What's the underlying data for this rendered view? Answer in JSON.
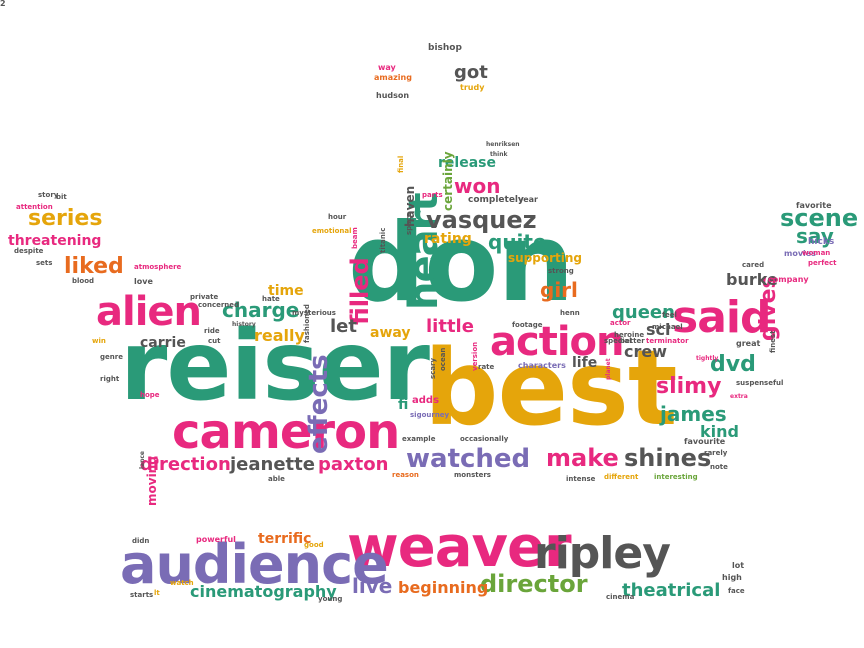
{
  "palette": {
    "pink": "#e8297f",
    "teal": "#2a9a78",
    "gold": "#e5a50b",
    "purple": "#7a6cb5",
    "gray": "#555555",
    "orange": "#e86b1f",
    "green": "#6aa53a"
  },
  "words": [
    {
      "text": "reiser",
      "color": "teal"
    },
    {
      "text": "best",
      "color": "gold"
    },
    {
      "text": "don",
      "color": "teal"
    },
    {
      "text": "weaver",
      "color": "pink"
    },
    {
      "text": "cameron",
      "color": "pink"
    },
    {
      "text": "audience",
      "color": "purple"
    },
    {
      "text": "ripley",
      "color": "gray"
    },
    {
      "text": "said",
      "color": "pink"
    },
    {
      "text": "action",
      "color": "pink"
    },
    {
      "text": "alien",
      "color": "pink"
    },
    {
      "text": "heart",
      "color": "teal"
    },
    {
      "text": "effects",
      "color": "purple"
    },
    {
      "text": "vasquez",
      "color": "gray"
    },
    {
      "text": "watched",
      "color": "purple"
    },
    {
      "text": "make",
      "color": "pink"
    },
    {
      "text": "shines",
      "color": "gray"
    },
    {
      "text": "director",
      "color": "green"
    },
    {
      "text": "scene",
      "color": "teal"
    },
    {
      "text": "gives",
      "color": "pink"
    },
    {
      "text": "filled",
      "color": "pink"
    },
    {
      "text": "liked",
      "color": "orange"
    },
    {
      "text": "series",
      "color": "gold"
    },
    {
      "text": "threatening",
      "color": "pink"
    },
    {
      "text": "won",
      "color": "pink"
    },
    {
      "text": "quite",
      "color": "teal"
    },
    {
      "text": "girl",
      "color": "orange"
    },
    {
      "text": "charge",
      "color": "teal"
    },
    {
      "text": "let",
      "color": "gray"
    },
    {
      "text": "away",
      "color": "gold"
    },
    {
      "text": "queen",
      "color": "teal"
    },
    {
      "text": "little",
      "color": "pink"
    },
    {
      "text": "dvd",
      "color": "teal"
    },
    {
      "text": "crew",
      "color": "gray"
    },
    {
      "text": "slimy",
      "color": "pink"
    },
    {
      "text": "james",
      "color": "teal"
    },
    {
      "text": "burke",
      "color": "gray"
    },
    {
      "text": "say",
      "color": "teal"
    },
    {
      "text": "kind",
      "color": "teal"
    },
    {
      "text": "direction",
      "color": "pink"
    },
    {
      "text": "jeanette",
      "color": "gray"
    },
    {
      "text": "paxton",
      "color": "pink"
    },
    {
      "text": "live",
      "color": "purple"
    },
    {
      "text": "beginning",
      "color": "orange"
    },
    {
      "text": "theatrical",
      "color": "teal"
    },
    {
      "text": "cinematography",
      "color": "teal"
    },
    {
      "text": "terrific",
      "color": "orange"
    },
    {
      "text": "carrie",
      "color": "gray"
    },
    {
      "text": "really",
      "color": "gold"
    },
    {
      "text": "time",
      "color": "gold"
    },
    {
      "text": "release",
      "color": "teal"
    },
    {
      "text": "got",
      "color": "gray"
    },
    {
      "text": "rating",
      "color": "gold"
    },
    {
      "text": "sci",
      "color": "gray"
    },
    {
      "text": "life",
      "color": "gray"
    },
    {
      "text": "certainly",
      "color": "green"
    },
    {
      "text": "haven",
      "color": "gray"
    },
    {
      "text": "supporting",
      "color": "gold"
    },
    {
      "text": "moving",
      "color": "pink"
    },
    {
      "text": "fi",
      "color": "teal"
    },
    {
      "text": "adds",
      "color": "pink"
    },
    {
      "text": "bishop",
      "color": "gray"
    },
    {
      "text": "way",
      "color": "pink"
    },
    {
      "text": "amazing",
      "color": "orange"
    },
    {
      "text": "trudy",
      "color": "gold"
    },
    {
      "text": "hudson",
      "color": "gray"
    },
    {
      "text": "parts",
      "color": "pink"
    },
    {
      "text": "completely",
      "color": "gray"
    },
    {
      "text": "year",
      "color": "gray"
    },
    {
      "text": "strong",
      "color": "gray"
    },
    {
      "text": "favorite",
      "color": "gray"
    },
    {
      "text": "hicks",
      "color": "purple"
    },
    {
      "text": "movies",
      "color": "purple"
    },
    {
      "text": "woman",
      "color": "pink"
    },
    {
      "text": "perfect",
      "color": "pink"
    },
    {
      "text": "company",
      "color": "pink"
    },
    {
      "text": "cared",
      "color": "gray"
    },
    {
      "text": "feel",
      "color": "gray"
    },
    {
      "text": "michael",
      "color": "gray"
    },
    {
      "text": "actor",
      "color": "pink"
    },
    {
      "text": "great",
      "color": "gray"
    },
    {
      "text": "terminator",
      "color": "pink"
    },
    {
      "text": "better",
      "color": "gray"
    },
    {
      "text": "special",
      "color": "gray"
    },
    {
      "text": "tightly",
      "color": "pink"
    },
    {
      "text": "suspenseful",
      "color": "gray"
    },
    {
      "text": "extra",
      "color": "pink"
    },
    {
      "text": "finest",
      "color": "gray"
    },
    {
      "text": "favourite",
      "color": "gray"
    },
    {
      "text": "rarely",
      "color": "gray"
    },
    {
      "text": "note",
      "color": "gray"
    },
    {
      "text": "interesting",
      "color": "green"
    },
    {
      "text": "different",
      "color": "gold"
    },
    {
      "text": "intense",
      "color": "gray"
    },
    {
      "text": "monsters",
      "color": "gray"
    },
    {
      "text": "reason",
      "color": "orange"
    },
    {
      "text": "able",
      "color": "gray"
    },
    {
      "text": "example",
      "color": "gray"
    },
    {
      "text": "occasionally",
      "color": "gray"
    },
    {
      "text": "sigourney",
      "color": "purple"
    },
    {
      "text": "characters",
      "color": "purple"
    },
    {
      "text": "rate",
      "color": "gray"
    },
    {
      "text": "planet",
      "color": "pink"
    },
    {
      "text": "heroine",
      "color": "gray"
    },
    {
      "text": "henn",
      "color": "gray"
    },
    {
      "text": "footage",
      "color": "gray"
    },
    {
      "text": "scary",
      "color": "gray"
    },
    {
      "text": "ocean",
      "color": "gray"
    },
    {
      "text": "version",
      "color": "pink"
    },
    {
      "text": "attention",
      "color": "pink"
    },
    {
      "text": "story",
      "color": "gray"
    },
    {
      "text": "bit",
      "color": "gray"
    },
    {
      "text": "despite",
      "color": "gray"
    },
    {
      "text": "sets",
      "color": "gray"
    },
    {
      "text": "blood",
      "color": "gray"
    },
    {
      "text": "atmosphere",
      "color": "pink"
    },
    {
      "text": "love",
      "color": "gray"
    },
    {
      "text": "concerned",
      "color": "gray"
    },
    {
      "text": "private",
      "color": "gray"
    },
    {
      "text": "hate",
      "color": "gray"
    },
    {
      "text": "fashioned",
      "color": "gray"
    },
    {
      "text": "mysterious",
      "color": "gray"
    },
    {
      "text": "ride",
      "color": "gray"
    },
    {
      "text": "cut",
      "color": "gray"
    },
    {
      "text": "history",
      "color": "gray"
    },
    {
      "text": "win",
      "color": "gold"
    },
    {
      "text": "genre",
      "color": "gray"
    },
    {
      "text": "right",
      "color": "gray"
    },
    {
      "text": "hope",
      "color": "pink"
    },
    {
      "text": "lance",
      "color": "gray"
    },
    {
      "text": "emotional",
      "color": "gold"
    },
    {
      "text": "hour",
      "color": "gray"
    },
    {
      "text": "beam",
      "color": "pink"
    },
    {
      "text": "titanic",
      "color": "gray"
    },
    {
      "text": "space",
      "color": "gray"
    },
    {
      "text": "final",
      "color": "gold"
    },
    {
      "text": "henriksen",
      "color": "gray"
    },
    {
      "text": "think",
      "color": "gray"
    },
    {
      "text": "didn",
      "color": "gray"
    },
    {
      "text": "powerful",
      "color": "pink"
    },
    {
      "text": "good",
      "color": "gold"
    },
    {
      "text": "starts",
      "color": "gray"
    },
    {
      "text": "watch",
      "color": "gold"
    },
    {
      "text": "lt",
      "color": "gold"
    },
    {
      "text": "young",
      "color": "gray"
    },
    {
      "text": "cinema",
      "color": "gray"
    },
    {
      "text": "lot",
      "color": "gray"
    },
    {
      "text": "high",
      "color": "gray"
    },
    {
      "text": "face",
      "color": "gray"
    },
    {
      "text": "2",
      "color": "gray"
    }
  ]
}
